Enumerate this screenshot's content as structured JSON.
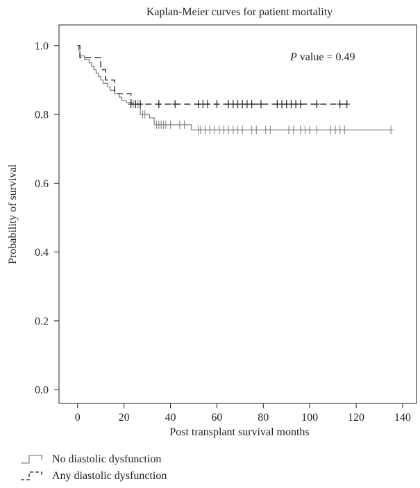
{
  "chart_data": {
    "type": "line",
    "title": "Kaplan-Meier curves for patient mortality",
    "xlabel": "Post transplant survival months",
    "ylabel": "Probability of survival",
    "xlim": [
      -8,
      146
    ],
    "ylim": [
      -0.04,
      1.06
    ],
    "xticks": [
      0,
      20,
      40,
      60,
      80,
      100,
      120,
      140
    ],
    "yticks": [
      0.0,
      0.2,
      0.4,
      0.6,
      0.8,
      1.0
    ],
    "annotation": {
      "italic": "P",
      "text": " value = 0.49"
    },
    "legend_position": "bottom-left",
    "series": [
      {
        "name": "No diastolic dysfunction",
        "color": "#8c8c8c",
        "dash": "solid",
        "steps": [
          [
            0,
            1.0
          ],
          [
            0.5,
            0.985
          ],
          [
            1,
            0.97
          ],
          [
            3,
            0.96
          ],
          [
            5,
            0.95
          ],
          [
            6,
            0.94
          ],
          [
            7,
            0.93
          ],
          [
            8,
            0.92
          ],
          [
            9,
            0.91
          ],
          [
            10,
            0.9
          ],
          [
            11,
            0.89
          ],
          [
            13,
            0.88
          ],
          [
            14,
            0.87
          ],
          [
            16,
            0.86
          ],
          [
            18,
            0.85
          ],
          [
            19,
            0.84
          ],
          [
            21,
            0.835
          ],
          [
            24,
            0.83
          ],
          [
            27,
            0.8
          ],
          [
            31,
            0.79
          ],
          [
            33,
            0.77
          ],
          [
            40,
            0.77
          ],
          [
            49,
            0.755
          ],
          [
            135,
            0.755
          ]
        ],
        "censor_times": [
          24,
          26,
          28,
          29,
          34,
          35,
          36,
          37,
          38,
          40,
          44,
          46,
          52,
          53,
          55,
          57,
          59,
          61,
          63,
          65,
          67,
          69,
          71,
          75,
          77,
          81,
          83,
          91,
          93,
          96,
          98,
          100,
          103,
          109,
          111,
          113,
          115,
          135
        ]
      },
      {
        "name": "Any diastolic dysfunction",
        "color": "#222222",
        "dash": "dashed",
        "steps": [
          [
            0,
            1.0
          ],
          [
            1,
            0.965
          ],
          [
            8,
            0.965
          ],
          [
            10,
            0.93
          ],
          [
            12,
            0.9
          ],
          [
            16,
            0.86
          ],
          [
            22,
            0.86
          ],
          [
            23,
            0.83
          ],
          [
            116,
            0.83
          ]
        ],
        "censor_times": [
          23,
          25,
          27,
          35,
          42,
          52,
          54,
          56,
          60,
          65,
          67,
          69,
          71,
          73,
          75,
          79,
          86,
          88,
          90,
          92,
          94,
          96,
          103,
          113,
          116
        ]
      }
    ]
  }
}
